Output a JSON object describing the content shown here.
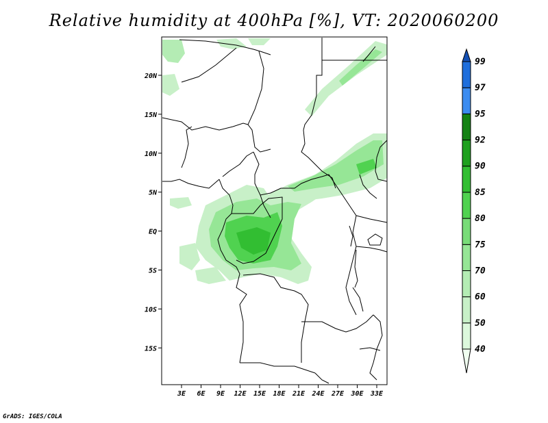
{
  "title": "Relative humidity at 400hPa [%], VT: 2020060200",
  "footer": "GrADS: IGES/COLA",
  "map": {
    "lat_labels": [
      "20N",
      "15N",
      "10N",
      "5N",
      "EQ",
      "5S",
      "10S",
      "15S"
    ],
    "lon_labels": [
      "3E",
      "6E",
      "9E",
      "12E",
      "15E",
      "18E",
      "21E",
      "24E",
      "27E",
      "30E",
      "33E"
    ]
  },
  "colorbar": {
    "labels": [
      "40",
      "50",
      "60",
      "70",
      "75",
      "80",
      "85",
      "90",
      "92",
      "95",
      "97",
      "99"
    ],
    "colors": [
      "#f0fff0",
      "#dcf8dc",
      "#c8f0c8",
      "#b4ecb4",
      "#96e696",
      "#78dc78",
      "#50d250",
      "#32be32",
      "#1ea01e",
      "#148214",
      "#3c8cf0",
      "#1e6edc",
      "#1450b4"
    ]
  }
}
